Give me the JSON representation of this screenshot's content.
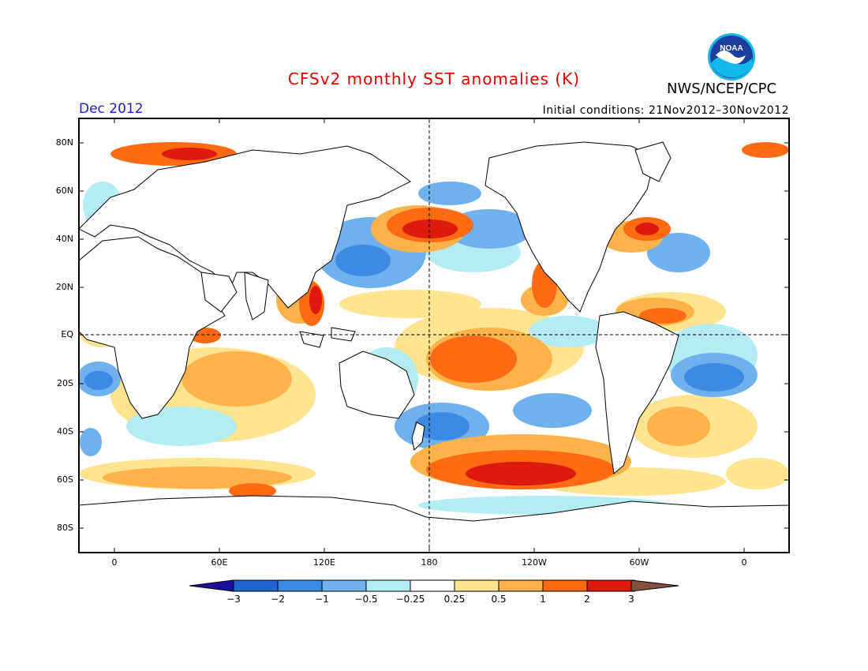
{
  "title": "CFSv2 monthly SST anomalies (K)",
  "agency": "NWS/NCEP/CPC",
  "month": "Dec 2012",
  "initial_conditions": "Initial conditions: 21Nov2012–30Nov2012",
  "logo_text": "NOAA",
  "lat_labels": [
    "80N",
    "60N",
    "40N",
    "20N",
    "EQ",
    "20S",
    "40S",
    "60S",
    "80S"
  ],
  "lon_labels": [
    "0",
    "60E",
    "120E",
    "180",
    "120W",
    "60W",
    "0"
  ],
  "colorbar": {
    "labels": [
      "−3",
      "−2",
      "−1",
      "−0.5",
      "−0.25",
      "0.25",
      "0.5",
      "1",
      "2",
      "3"
    ],
    "colors": [
      "#1c0f9c",
      "#1f64d1",
      "#3b8ae3",
      "#6fb0ef",
      "#b3ecf2",
      "#ffffff",
      "#ffe38f",
      "#ffb14a",
      "#ff6a12",
      "#dd1a0c",
      "#a00808",
      "#825040"
    ]
  },
  "colors": {
    "coast": "#000000",
    "strong_cold": "#3b8ae3",
    "cold": "#6fb0ef",
    "weak_cold": "#b3ecf2",
    "weak_warm": "#ffe38f",
    "warm": "#ffb14a",
    "strong_warm": "#ff6a12",
    "very_warm": "#dd1a0c"
  }
}
